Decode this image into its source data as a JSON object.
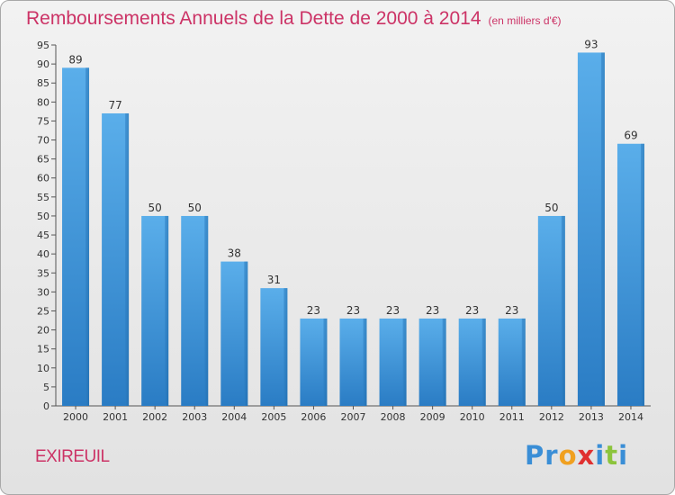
{
  "header": {
    "title": "Remboursements Annuels de la Dette de 2000 à 2014",
    "unit": "(en milliers d'€)"
  },
  "footer": {
    "commune": "EXIREUIL",
    "logo_letters": [
      "P",
      "r",
      "o",
      "x",
      "i",
      "t",
      "i"
    ],
    "logo_colors": [
      "#3a8ed6",
      "#3a8ed6",
      "#f0a020",
      "#e03030",
      "#3a8ed6",
      "#8cc43c",
      "#3a8ed6"
    ]
  },
  "chart_data": {
    "type": "bar",
    "title": "Remboursements Annuels de la Dette de 2000 à 2014",
    "categories": [
      "2000",
      "2001",
      "2002",
      "2003",
      "2004",
      "2005",
      "2006",
      "2007",
      "2008",
      "2009",
      "2010",
      "2011",
      "2012",
      "2013",
      "2014"
    ],
    "values": [
      89,
      77,
      50,
      50,
      38,
      31,
      23,
      23,
      23,
      23,
      23,
      23,
      50,
      93,
      69
    ],
    "value_labels": [
      "89",
      "77",
      "50",
      "50",
      "38",
      "31",
      "23",
      "23",
      "23",
      "23",
      "23",
      "23",
      "50",
      "93",
      "69"
    ],
    "yticks": [
      "0",
      "5",
      "10",
      "15",
      "20",
      "25",
      "30",
      "35",
      "40",
      "45",
      "50",
      "55",
      "60",
      "65",
      "70",
      "75",
      "80",
      "85",
      "90",
      "95"
    ],
    "ylim": [
      0,
      95
    ],
    "grid": false,
    "bar_color": "#4a9ee0"
  }
}
